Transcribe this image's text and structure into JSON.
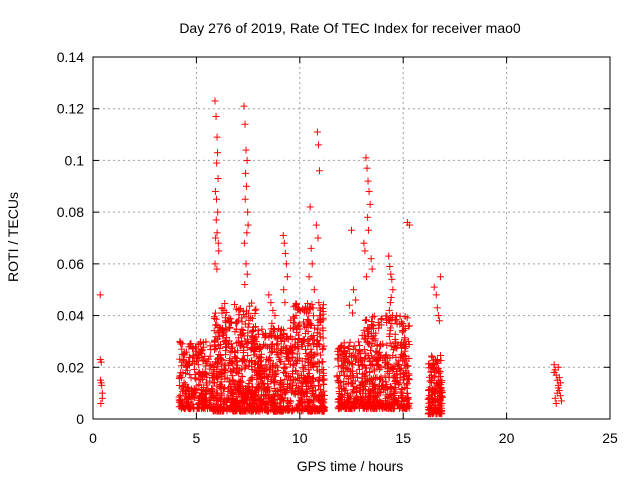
{
  "chart_data": {
    "type": "scatter",
    "title": "Day 276 of 2019, Rate Of TEC Index for receiver mao0",
    "xlabel": "GPS time / hours",
    "ylabel": "ROTI / TECUs",
    "xlim": [
      0,
      25
    ],
    "ylim": [
      0,
      0.14
    ],
    "x_ticks": [
      0,
      5,
      10,
      15,
      20,
      25
    ],
    "x_tick_labels": [
      "0",
      "5",
      "10",
      "15",
      "20",
      "25"
    ],
    "y_ticks": [
      0,
      0.02,
      0.04,
      0.06,
      0.08,
      0.1,
      0.12,
      0.14
    ],
    "y_tick_labels": [
      "0",
      "0.02",
      "0.04",
      "0.06",
      "0.08",
      "0.1",
      "0.12",
      "0.14"
    ],
    "grid": true,
    "marker": "+",
    "color": "#ff0000",
    "series": [
      {
        "x": [
          0.35,
          0.35,
          0.4,
          0.4,
          0.42,
          0.45,
          0.45,
          0.38,
          0.36,
          4.2,
          4.25,
          4.3,
          4.35,
          4.4,
          4.3,
          4.45,
          4.5,
          4.2,
          4.28,
          4.38,
          22.3,
          22.35,
          22.4,
          22.45,
          22.5,
          22.55,
          22.6,
          22.65,
          22.4,
          22.5,
          22.3,
          22.6,
          22.45,
          22.55,
          22.35,
          22.5,
          5.9,
          5.95,
          6.0,
          6.02,
          5.98,
          6.05,
          5.92,
          5.97,
          6.03,
          5.96,
          6.0,
          5.93,
          6.06,
          6.08,
          5.9,
          5.99,
          7.3,
          7.35,
          7.4,
          7.45,
          7.38,
          7.42,
          7.36,
          7.48,
          7.5,
          7.44,
          7.32,
          7.4,
          7.46,
          7.34,
          10.5,
          10.55,
          10.6,
          10.85,
          10.9,
          10.95,
          10.8,
          10.88,
          10.45,
          10.7,
          10.92,
          11.0,
          9.2,
          9.25,
          9.3,
          9.35,
          9.4,
          9.22,
          9.28,
          13.2,
          13.25,
          13.3,
          13.35,
          13.4,
          13.28,
          13.32,
          13.1,
          13.15,
          13.45,
          13.5,
          13.22,
          14.3,
          14.35,
          14.4,
          14.45,
          14.5,
          14.42,
          14.38,
          14.33,
          14.48,
          14.36,
          12.5,
          12.6,
          12.7,
          12.4,
          12.55,
          16.5,
          16.6,
          16.8,
          16.65,
          16.7,
          16.75,
          8.5,
          8.6,
          8.7,
          8.8,
          8.65,
          8.72,
          8.55,
          8.9,
          15.2,
          15.3,
          15.1,
          15.25
        ],
        "y": [
          0.048,
          0.023,
          0.022,
          0.014,
          0.013,
          0.01,
          0.008,
          0.006,
          0.015,
          0.03,
          0.029,
          0.022,
          0.018,
          0.014,
          0.012,
          0.01,
          0.02,
          0.007,
          0.016,
          0.025,
          0.021,
          0.019,
          0.017,
          0.015,
          0.013,
          0.011,
          0.009,
          0.007,
          0.006,
          0.012,
          0.018,
          0.014,
          0.01,
          0.016,
          0.008,
          0.02,
          0.123,
          0.117,
          0.109,
          0.103,
          0.099,
          0.093,
          0.088,
          0.085,
          0.08,
          0.077,
          0.072,
          0.07,
          0.068,
          0.065,
          0.06,
          0.058,
          0.121,
          0.114,
          0.104,
          0.1,
          0.095,
          0.09,
          0.085,
          0.08,
          0.075,
          0.072,
          0.068,
          0.06,
          0.056,
          0.052,
          0.082,
          0.066,
          0.06,
          0.111,
          0.106,
          0.096,
          0.075,
          0.07,
          0.055,
          0.05,
          0.045,
          0.04,
          0.071,
          0.068,
          0.064,
          0.06,
          0.055,
          0.05,
          0.045,
          0.101,
          0.097,
          0.092,
          0.088,
          0.083,
          0.078,
          0.073,
          0.068,
          0.065,
          0.062,
          0.058,
          0.055,
          0.063,
          0.059,
          0.056,
          0.054,
          0.05,
          0.047,
          0.045,
          0.042,
          0.04,
          0.038,
          0.073,
          0.05,
          0.046,
          0.044,
          0.041,
          0.051,
          0.048,
          0.055,
          0.043,
          0.04,
          0.038,
          0.048,
          0.045,
          0.042,
          0.04,
          0.037,
          0.035,
          0.033,
          0.031,
          0.076,
          0.075,
          0.035,
          0.03
        ]
      }
    ],
    "dense_bands": [
      {
        "x_start": 4.15,
        "x_end": 5.8,
        "y_min": 0.004,
        "y_max": 0.03,
        "count": 260
      },
      {
        "x_start": 5.8,
        "x_end": 7.9,
        "y_min": 0.003,
        "y_max": 0.045,
        "count": 520
      },
      {
        "x_start": 7.9,
        "x_end": 9.5,
        "y_min": 0.003,
        "y_max": 0.035,
        "count": 330
      },
      {
        "x_start": 9.5,
        "x_end": 11.2,
        "y_min": 0.003,
        "y_max": 0.045,
        "count": 380
      },
      {
        "x_start": 11.8,
        "x_end": 13.0,
        "y_min": 0.004,
        "y_max": 0.03,
        "count": 200
      },
      {
        "x_start": 13.0,
        "x_end": 15.3,
        "y_min": 0.004,
        "y_max": 0.04,
        "count": 480
      },
      {
        "x_start": 16.2,
        "x_end": 16.9,
        "y_min": 0.002,
        "y_max": 0.025,
        "count": 160
      }
    ]
  }
}
